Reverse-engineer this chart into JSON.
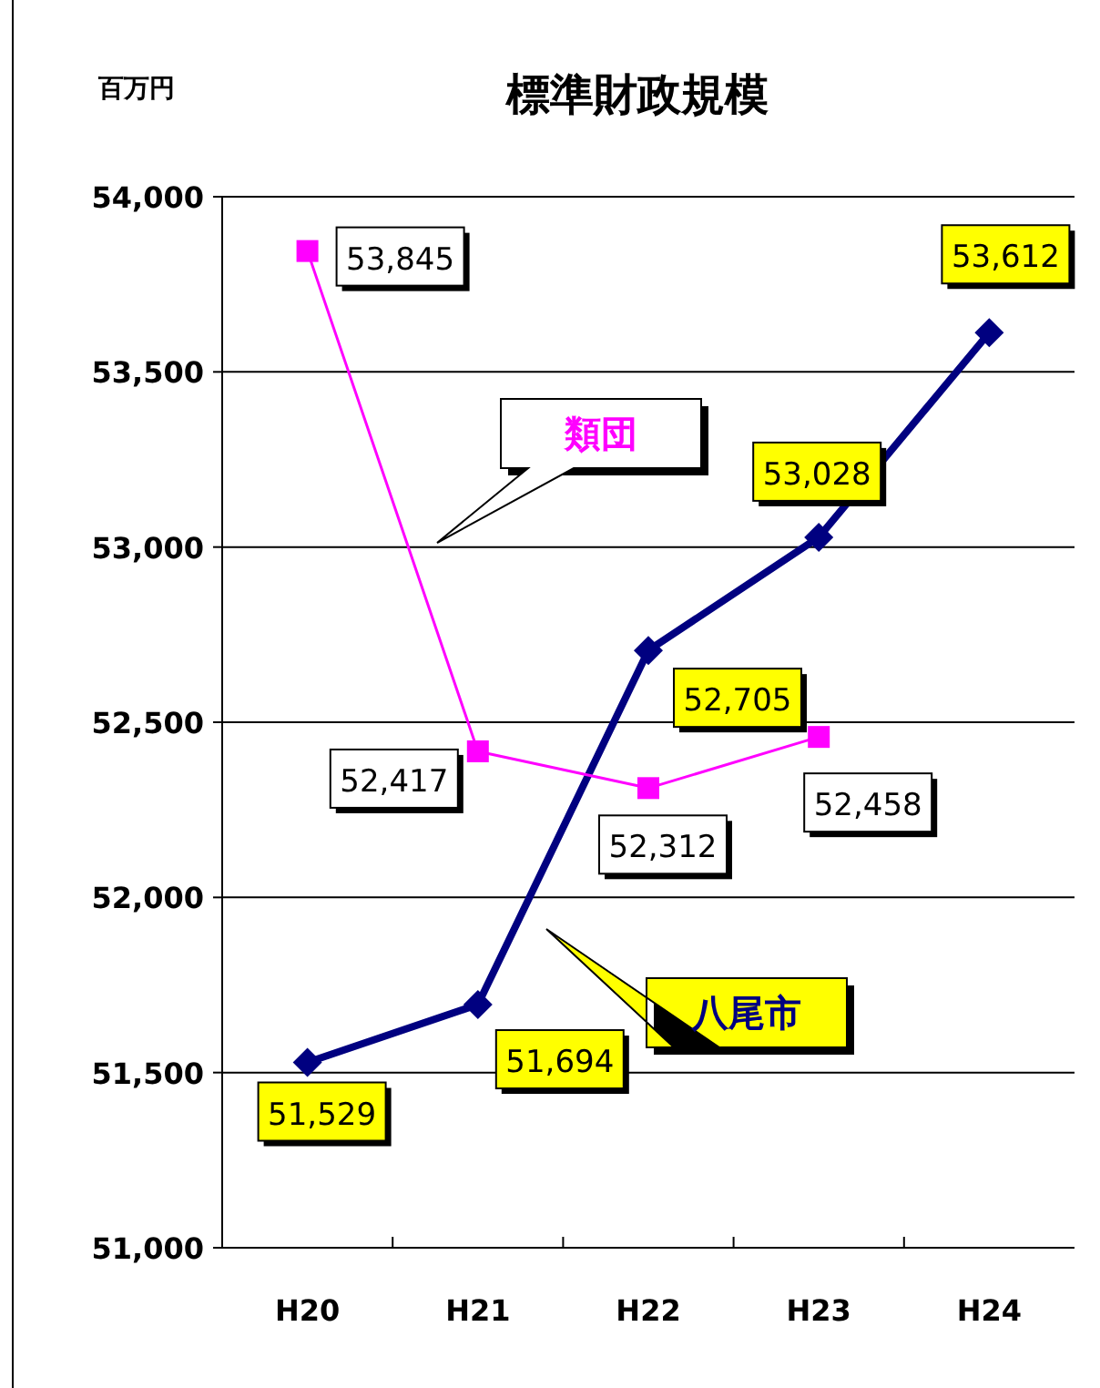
{
  "chart_data": {
    "type": "line",
    "title": "標準財政規模",
    "ylabel": "百万円",
    "categories": [
      "H20",
      "H21",
      "H22",
      "H23",
      "H24"
    ],
    "ylim": [
      51000,
      54000
    ],
    "yticks": [
      {
        "value": 51000,
        "label": "51,000"
      },
      {
        "value": 51500,
        "label": "51,500"
      },
      {
        "value": 52000,
        "label": "52,000"
      },
      {
        "value": 52500,
        "label": "52,500"
      },
      {
        "value": 53000,
        "label": "53,000"
      },
      {
        "value": 53500,
        "label": "53,500"
      },
      {
        "value": 54000,
        "label": "54,000"
      }
    ],
    "grid": "y",
    "series": [
      {
        "name": "八尾市",
        "color": "#000080",
        "marker": "diamond",
        "values": [
          51529,
          51694,
          52705,
          53028,
          53612
        ],
        "value_labels": [
          "51,529",
          "51,694",
          "52,705",
          "53,028",
          "53,612"
        ]
      },
      {
        "name": "類団",
        "color": "#ff00ff",
        "marker": "square",
        "values": [
          53845,
          52417,
          52312,
          52458,
          null
        ],
        "value_labels": [
          "53,845",
          "52,417",
          "52,312",
          "52,458",
          null
        ]
      }
    ]
  }
}
